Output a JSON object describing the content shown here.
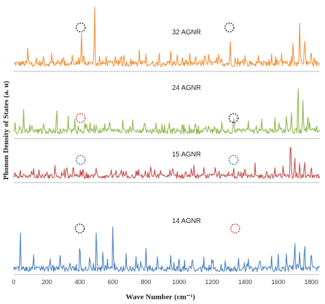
{
  "chart_data": {
    "type": "line",
    "xlabel": "Wave Number (cm⁻¹)",
    "ylabel": "Phonon Density of States (a. u)",
    "xlim": [
      0,
      1850
    ],
    "xticks": [
      "0",
      "200",
      "400",
      "600",
      "800",
      "1000",
      "1200",
      "1400",
      "1600",
      "1800"
    ],
    "tick_values": [
      0,
      200,
      400,
      600,
      800,
      1000,
      1200,
      1400,
      1600,
      1800
    ],
    "grid": false,
    "series": [
      {
        "name": "32 AGNR",
        "color": "#f0913a",
        "peaks": [
          [
            85,
            0.28
          ],
          [
            180,
            0.16
          ],
          [
            230,
            0.22
          ],
          [
            300,
            0.18
          ],
          [
            355,
            0.2
          ],
          [
            410,
            0.5
          ],
          [
            490,
            1.0
          ],
          [
            560,
            0.16
          ],
          [
            650,
            0.22
          ],
          [
            760,
            0.25
          ],
          [
            800,
            0.2
          ],
          [
            880,
            0.22
          ],
          [
            950,
            0.25
          ],
          [
            1020,
            0.18
          ],
          [
            1100,
            0.2
          ],
          [
            1180,
            0.18
          ],
          [
            1240,
            0.22
          ],
          [
            1310,
            0.44
          ],
          [
            1400,
            0.18
          ],
          [
            1480,
            0.16
          ],
          [
            1560,
            0.2
          ],
          [
            1620,
            0.22
          ],
          [
            1690,
            0.42
          ],
          [
            1730,
            0.74
          ],
          [
            1760,
            0.52
          ],
          [
            1800,
            0.3
          ]
        ],
        "markers": [
          {
            "x": 405,
            "color": "#222222"
          },
          {
            "x": 1305,
            "color": "#222222"
          }
        ]
      },
      {
        "name": "24 AGNR",
        "color": "#8db84a",
        "peaks": [
          [
            60,
            0.4
          ],
          [
            110,
            0.18
          ],
          [
            180,
            0.2
          ],
          [
            260,
            0.5
          ],
          [
            330,
            0.28
          ],
          [
            370,
            0.24
          ],
          [
            440,
            0.2
          ],
          [
            500,
            0.18
          ],
          [
            580,
            0.22
          ],
          [
            660,
            0.24
          ],
          [
            720,
            0.22
          ],
          [
            790,
            0.2
          ],
          [
            860,
            0.18
          ],
          [
            940,
            0.22
          ],
          [
            1020,
            0.2
          ],
          [
            1100,
            0.24
          ],
          [
            1180,
            0.18
          ],
          [
            1260,
            0.2
          ],
          [
            1330,
            0.3
          ],
          [
            1420,
            0.22
          ],
          [
            1500,
            0.24
          ],
          [
            1580,
            0.28
          ],
          [
            1650,
            0.35
          ],
          [
            1680,
            0.42
          ],
          [
            1720,
            1.0
          ],
          [
            1750,
            0.6
          ],
          [
            1780,
            0.4
          ]
        ],
        "markers": [
          {
            "x": 405,
            "color": "#d03a3a"
          },
          {
            "x": 1330,
            "color": "#222222"
          }
        ]
      },
      {
        "name": "15 AGNR",
        "color": "#c0504d",
        "peaks": [
          [
            40,
            0.15
          ],
          [
            120,
            0.2
          ],
          [
            200,
            0.15
          ],
          [
            250,
            0.28
          ],
          [
            320,
            0.3
          ],
          [
            360,
            0.32
          ],
          [
            420,
            0.25
          ],
          [
            500,
            0.25
          ],
          [
            590,
            0.2
          ],
          [
            650,
            0.22
          ],
          [
            680,
            0.15
          ],
          [
            740,
            0.15
          ],
          [
            830,
            0.3
          ],
          [
            890,
            0.2
          ],
          [
            960,
            0.25
          ],
          [
            1040,
            0.2
          ],
          [
            1090,
            0.25
          ],
          [
            1150,
            0.2
          ],
          [
            1220,
            0.3
          ],
          [
            1300,
            0.15
          ],
          [
            1330,
            0.24
          ],
          [
            1400,
            0.2
          ],
          [
            1460,
            0.3
          ],
          [
            1530,
            0.2
          ],
          [
            1580,
            0.22
          ],
          [
            1630,
            0.3
          ],
          [
            1675,
            1.0
          ],
          [
            1700,
            0.52
          ],
          [
            1730,
            0.35
          ],
          [
            1760,
            0.45
          ],
          [
            1800,
            0.3
          ]
        ],
        "markers": [
          {
            "x": 405,
            "color": "#3a6fb0"
          },
          {
            "x": 1330,
            "color": "#3a6fb0"
          }
        ]
      },
      {
        "name": "14 AGNR",
        "color": "#4a82c4",
        "peaks": [
          [
            40,
            0.65
          ],
          [
            120,
            0.28
          ],
          [
            220,
            0.25
          ],
          [
            280,
            0.34
          ],
          [
            340,
            0.2
          ],
          [
            400,
            0.55
          ],
          [
            460,
            0.3
          ],
          [
            500,
            0.82
          ],
          [
            540,
            0.4
          ],
          [
            600,
            0.85
          ],
          [
            680,
            0.3
          ],
          [
            740,
            0.24
          ],
          [
            800,
            0.4
          ],
          [
            870,
            0.3
          ],
          [
            950,
            0.3
          ],
          [
            1000,
            0.28
          ],
          [
            1080,
            0.26
          ],
          [
            1150,
            0.24
          ],
          [
            1200,
            0.28
          ],
          [
            1280,
            0.2
          ],
          [
            1360,
            0.22
          ],
          [
            1420,
            0.2
          ],
          [
            1490,
            0.25
          ],
          [
            1560,
            0.28
          ],
          [
            1600,
            0.3
          ],
          [
            1650,
            0.35
          ],
          [
            1700,
            0.6
          ],
          [
            1730,
            0.36
          ],
          [
            1760,
            0.58
          ],
          [
            1800,
            0.4
          ]
        ],
        "markers": [
          {
            "x": 400,
            "color": "#222222"
          },
          {
            "x": 1340,
            "color": "#d03a3a"
          }
        ]
      }
    ]
  }
}
